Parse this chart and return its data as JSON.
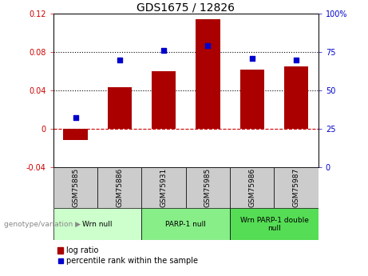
{
  "title": "GDS1675 / 12826",
  "samples": [
    "GSM75885",
    "GSM75886",
    "GSM75931",
    "GSM75985",
    "GSM75986",
    "GSM75987"
  ],
  "log_ratio": [
    -0.012,
    0.043,
    0.06,
    0.114,
    0.062,
    0.065
  ],
  "percentile_rank": [
    32,
    70,
    76,
    79,
    71,
    70
  ],
  "groups": [
    {
      "label": "Wrn null",
      "start": 0,
      "end": 2,
      "color": "#ccffcc"
    },
    {
      "label": "PARP-1 null",
      "start": 2,
      "end": 4,
      "color": "#88ee88"
    },
    {
      "label": "Wrn PARP-1 double\nnull",
      "start": 4,
      "end": 6,
      "color": "#55dd55"
    }
  ],
  "bar_color": "#aa0000",
  "dot_color": "#0000cc",
  "ylim_left": [
    -0.04,
    0.12
  ],
  "ylim_right": [
    0,
    100
  ],
  "yticks_left": [
    -0.04,
    0,
    0.04,
    0.08,
    0.12
  ],
  "yticks_right": [
    0,
    25,
    50,
    75,
    100
  ],
  "hline_dotted": [
    0.04,
    0.08
  ],
  "background_color": "#ffffff",
  "tick_label_color_left": "#cc0000",
  "tick_label_color_right": "#0000cc",
  "sample_box_color": "#cccccc",
  "genotype_label": "genotype/variation"
}
